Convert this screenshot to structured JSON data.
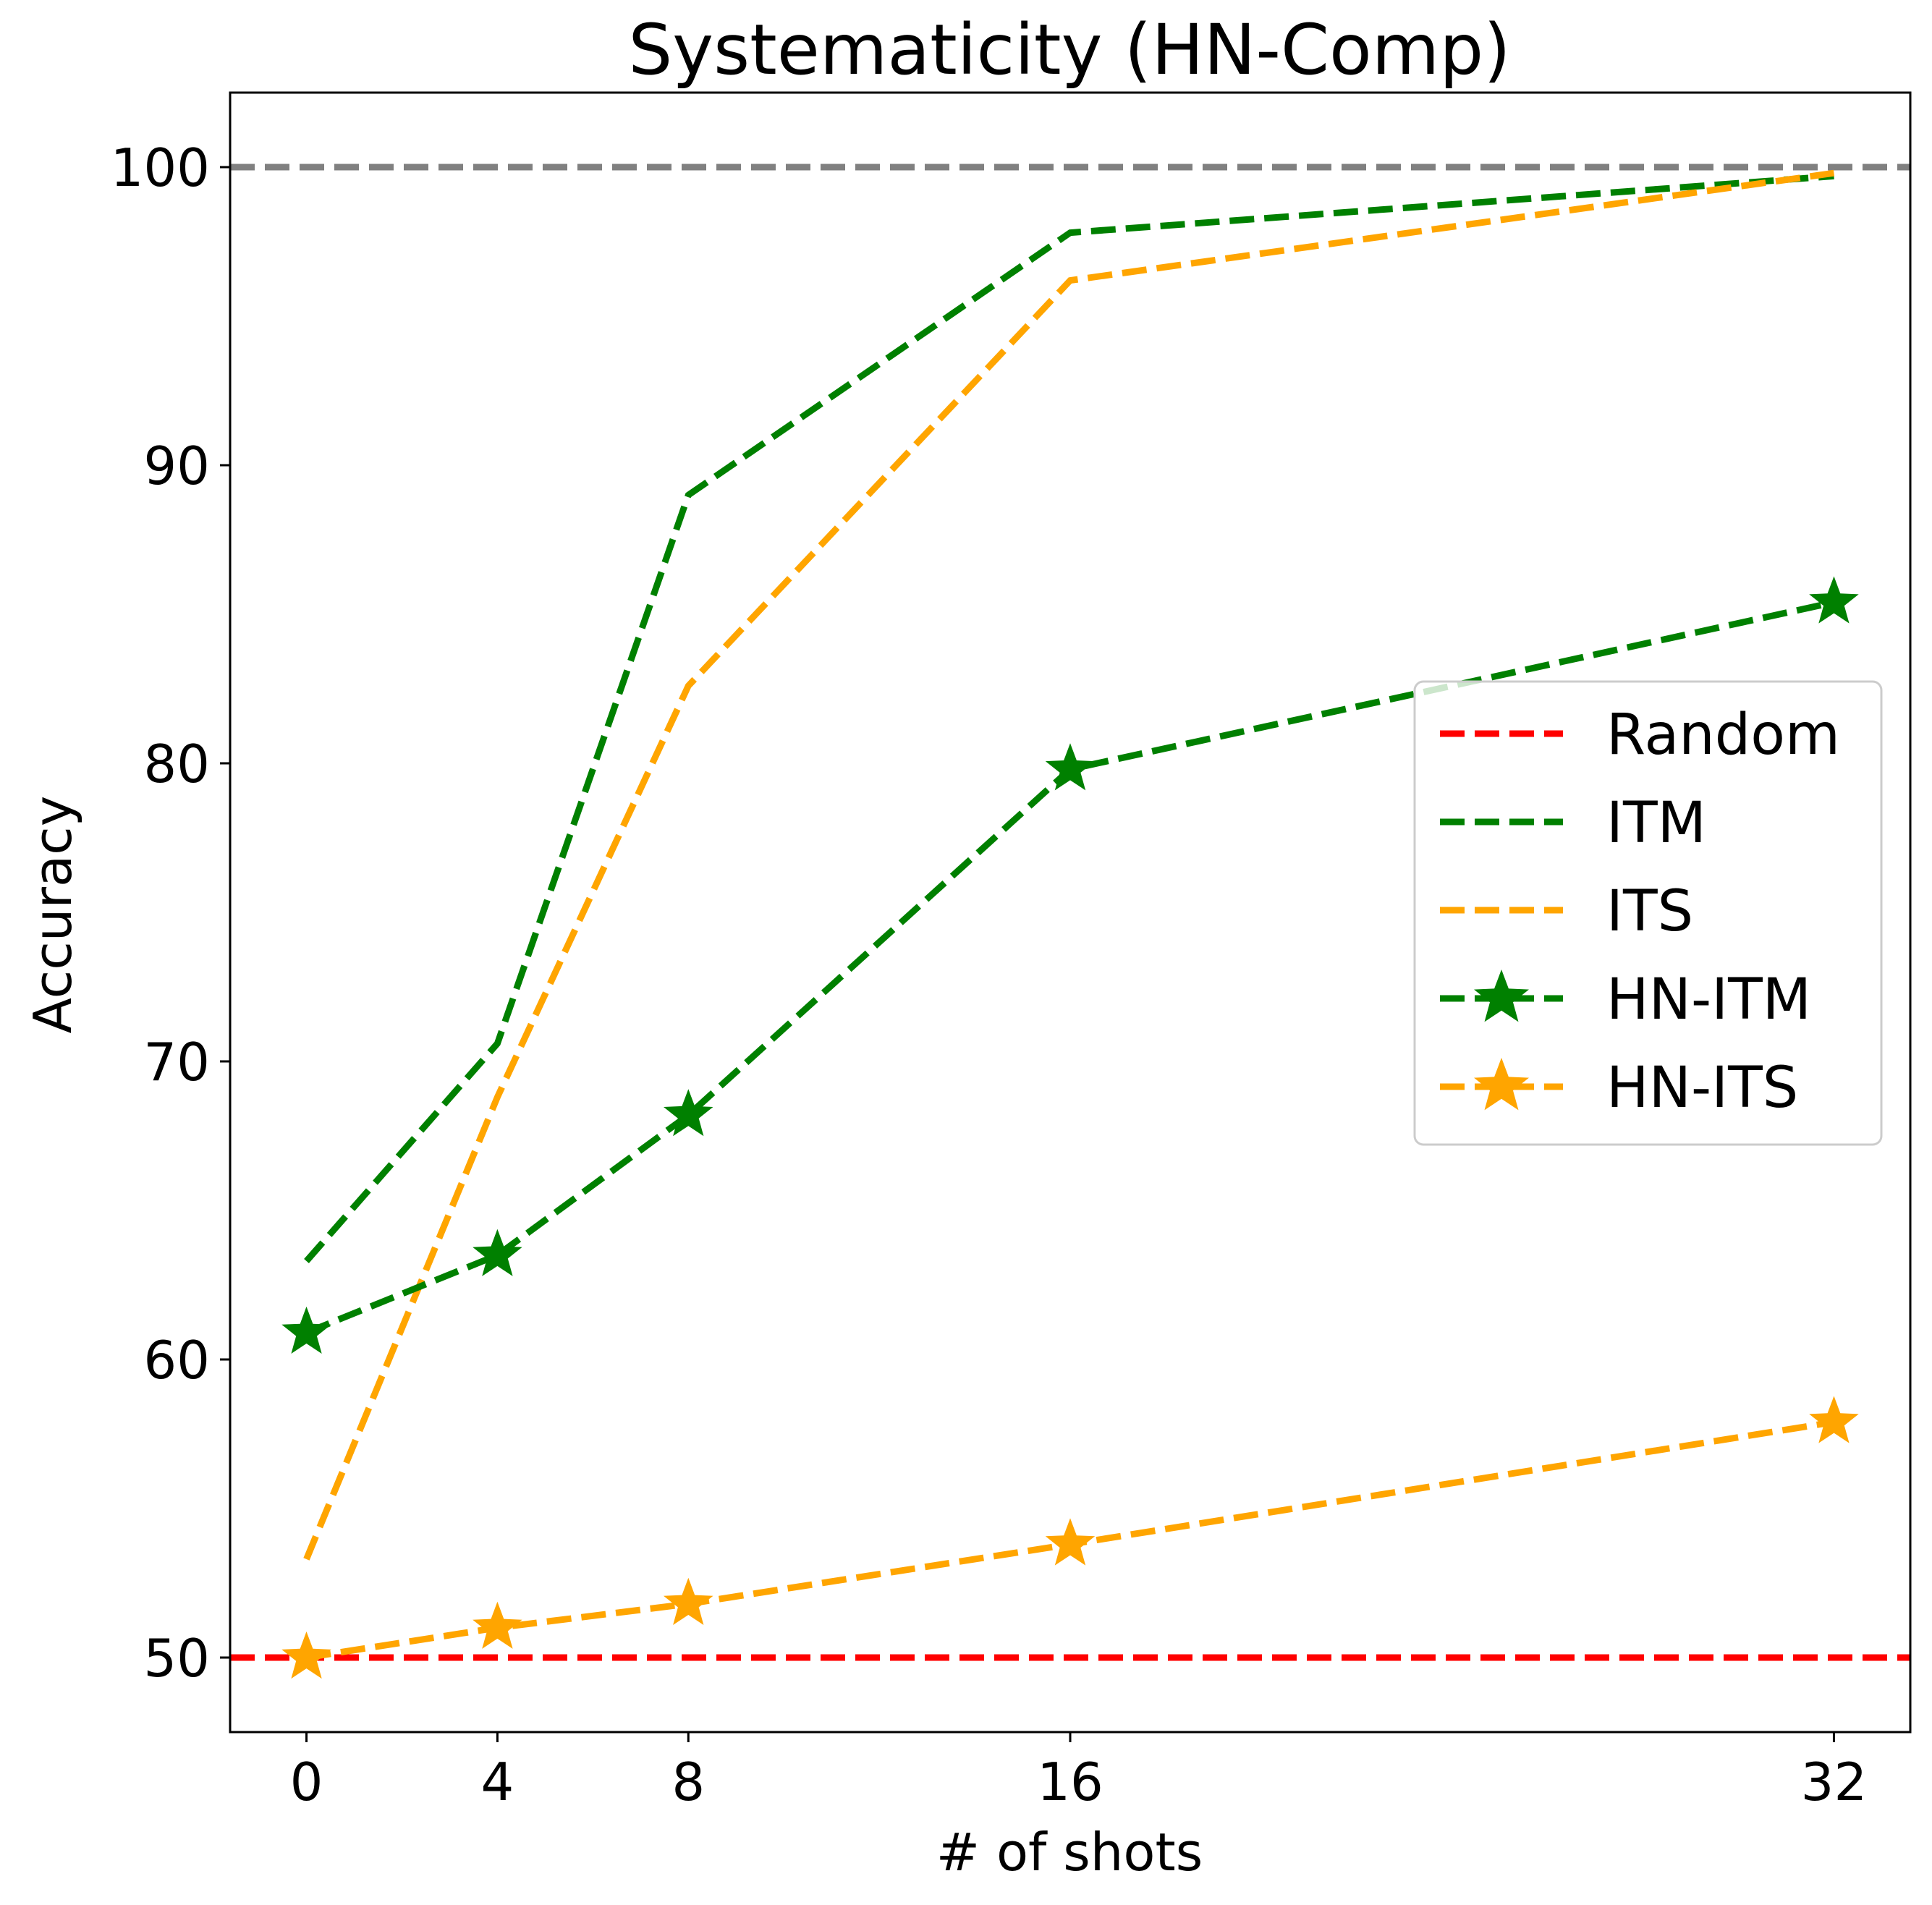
{
  "chart_data": {
    "type": "line",
    "title": "Systematicity (HN-Comp)",
    "xlabel": "# of shots",
    "ylabel": "Accuracy",
    "x": [
      0,
      4,
      8,
      16,
      32
    ],
    "x_ticks": [
      "0",
      "4",
      "8",
      "16",
      "32"
    ],
    "y_ticks": [
      "50",
      "60",
      "70",
      "80",
      "90",
      "100"
    ],
    "xlim": [
      -1.6,
      33.6
    ],
    "ylim": [
      47.5,
      102.5
    ],
    "grid": false,
    "legend_position": "center-right",
    "reference_lines": [
      {
        "name": "Random",
        "y": 50,
        "color": "#ff0000",
        "style": "dashed"
      },
      {
        "y": 100,
        "color": "#808080",
        "style": "dashed"
      }
    ],
    "series": [
      {
        "name": "ITM",
        "values": [
          63.3,
          70.6,
          89.0,
          97.8,
          99.7
        ],
        "color": "#008000",
        "style": "dashed",
        "marker": "none"
      },
      {
        "name": "ITS",
        "values": [
          53.3,
          68.8,
          82.6,
          96.2,
          99.8
        ],
        "color": "#ffa500",
        "style": "dashed",
        "marker": "none"
      },
      {
        "name": "HN-ITM",
        "values": [
          60.9,
          63.5,
          68.2,
          79.8,
          85.4
        ],
        "color": "#008000",
        "style": "dashed",
        "marker": "star"
      },
      {
        "name": "HN-ITS",
        "values": [
          50.0,
          51.0,
          51.8,
          53.8,
          57.9
        ],
        "color": "#ffa500",
        "style": "dashed",
        "marker": "star"
      }
    ],
    "legend": [
      "Random",
      "ITM",
      "ITS",
      "HN-ITM",
      "HN-ITS"
    ]
  }
}
